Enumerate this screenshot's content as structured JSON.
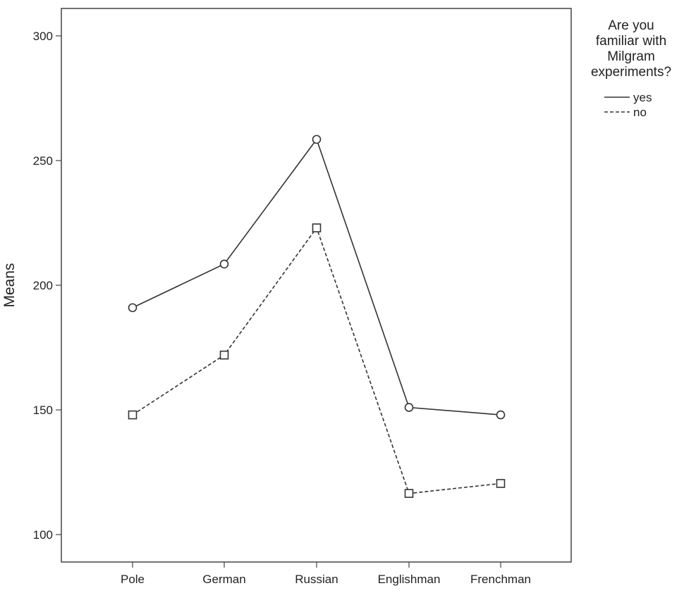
{
  "chart_data": {
    "type": "line",
    "title": "",
    "xlabel": "",
    "ylabel": "Means",
    "categories": [
      "Pole",
      "German",
      "Russian",
      "Englishman",
      "Frenchman"
    ],
    "ylim": [
      89,
      311
    ],
    "yticks": [
      100,
      150,
      200,
      250,
      300
    ],
    "grid": false,
    "legend": {
      "position": "right",
      "title_lines": [
        "Are you",
        "familiar with",
        "Milgram",
        "experiments?"
      ]
    },
    "series": [
      {
        "name": "yes",
        "line": "solid",
        "marker": "circle",
        "color": "#333333",
        "values": [
          191,
          208.5,
          258.5,
          151,
          148
        ]
      },
      {
        "name": "no",
        "line": "dashed",
        "marker": "square",
        "color": "#333333",
        "values": [
          148,
          172,
          223,
          116.5,
          120.5
        ]
      }
    ]
  }
}
